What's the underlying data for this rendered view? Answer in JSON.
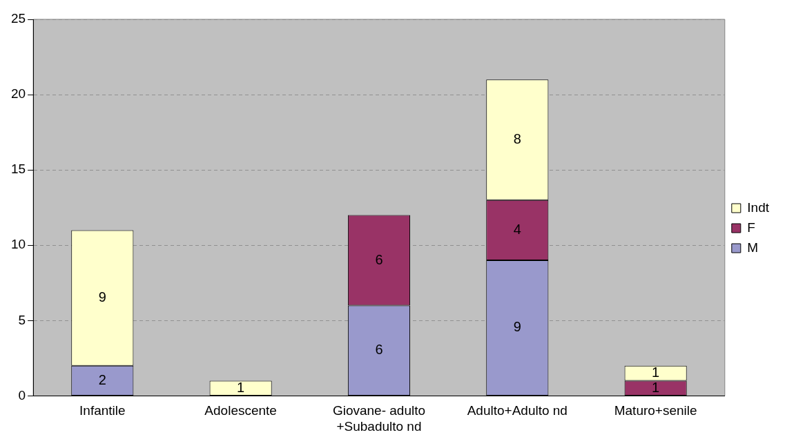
{
  "chart_data": {
    "type": "bar",
    "stacked": true,
    "categories": [
      "Infantile",
      "Adolescente",
      "Giovane- adulto +Subadulto nd",
      "Adulto+Adulto nd",
      "Maturo+senile"
    ],
    "series": [
      {
        "name": "M",
        "color": "#9999cc",
        "values": [
          2,
          null,
          6,
          9,
          null
        ]
      },
      {
        "name": "F",
        "color": "#993366",
        "values": [
          null,
          null,
          6,
          4,
          1
        ]
      },
      {
        "name": "Indt",
        "color": "#ffffcc",
        "values": [
          9,
          1,
          null,
          8,
          1
        ]
      }
    ],
    "ylim": [
      0,
      25
    ],
    "yticks": [
      0,
      5,
      10,
      15,
      20,
      25
    ],
    "grid": "y",
    "legend": "right",
    "data_labels": true
  }
}
